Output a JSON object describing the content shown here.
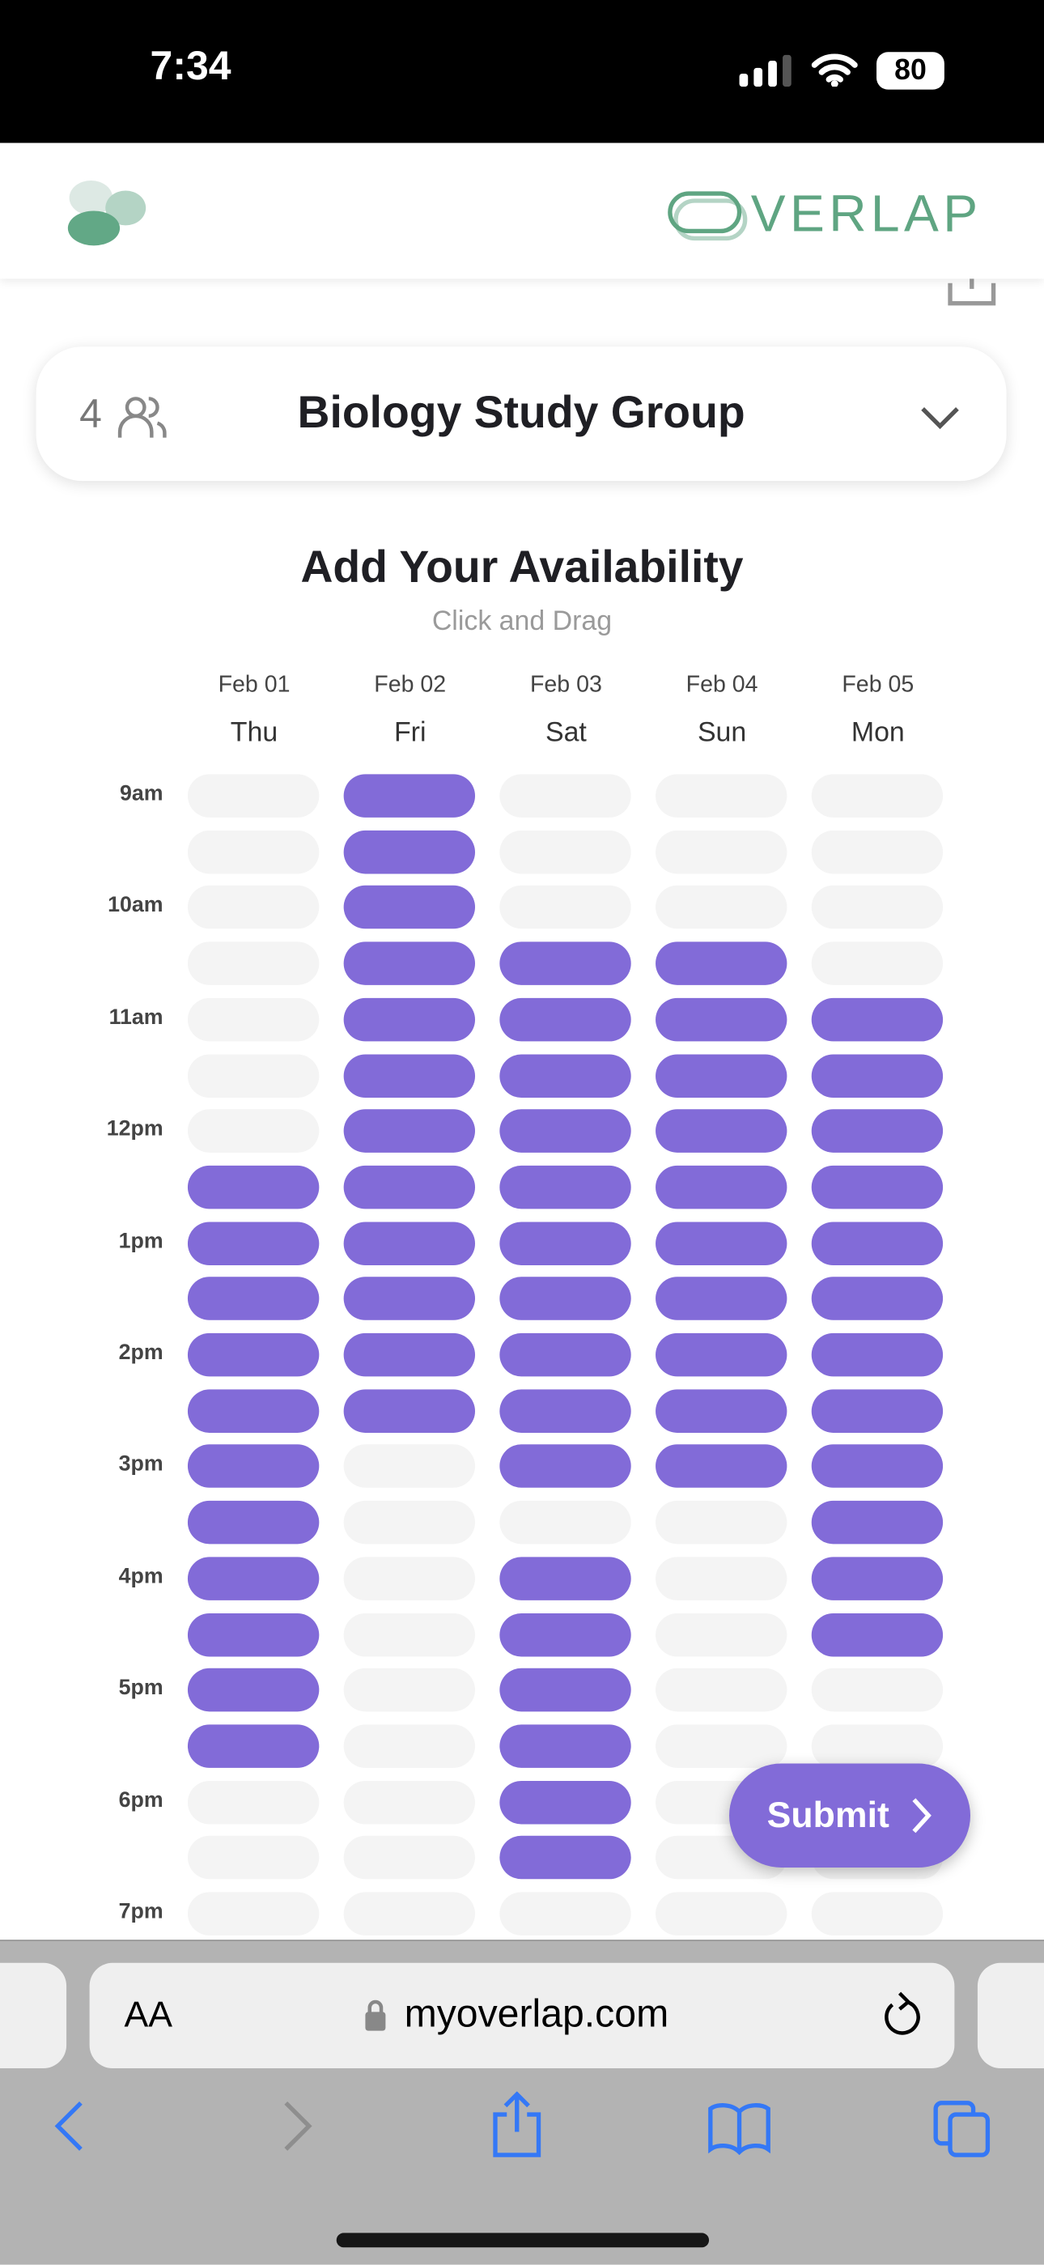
{
  "status_bar": {
    "time": "7:34",
    "battery": "80"
  },
  "app": {
    "brand": "VERLAP",
    "brand_full": "OVERLAP",
    "brand_color": "#5fa582"
  },
  "group": {
    "member_count": "4",
    "name": "Biology Study Group"
  },
  "page": {
    "title": "Add Your Availability",
    "subtitle": "Click and Drag"
  },
  "days": [
    {
      "date": "Feb 01",
      "day": "Thu"
    },
    {
      "date": "Feb 02",
      "day": "Fri"
    },
    {
      "date": "Feb 03",
      "day": "Sat"
    },
    {
      "date": "Feb 04",
      "day": "Sun"
    },
    {
      "date": "Feb 05",
      "day": "Mon"
    }
  ],
  "hours": [
    "9am",
    "10am",
    "11am",
    "12pm",
    "1pm",
    "2pm",
    "3pm",
    "4pm",
    "5pm",
    "6pm",
    "7pm"
  ],
  "availability": [
    [
      0,
      0,
      0,
      0,
      0,
      0,
      0,
      1,
      1,
      1,
      1,
      1,
      1,
      1,
      1,
      1,
      1,
      1,
      0,
      0,
      0
    ],
    [
      1,
      1,
      1,
      1,
      1,
      1,
      1,
      1,
      1,
      1,
      1,
      1,
      0,
      0,
      0,
      0,
      0,
      0,
      0,
      0,
      0
    ],
    [
      0,
      0,
      0,
      1,
      1,
      1,
      1,
      1,
      1,
      1,
      1,
      1,
      1,
      0,
      1,
      1,
      1,
      1,
      1,
      1,
      0
    ],
    [
      0,
      0,
      0,
      1,
      1,
      1,
      1,
      1,
      1,
      1,
      1,
      1,
      1,
      0,
      0,
      0,
      0,
      0,
      0,
      0,
      0
    ],
    [
      0,
      0,
      0,
      0,
      1,
      1,
      1,
      1,
      1,
      1,
      1,
      1,
      1,
      1,
      1,
      1,
      0,
      0,
      0,
      0,
      0
    ]
  ],
  "colors": {
    "selected": "#826bd8",
    "unselected": "#f4f4f4"
  },
  "submit_label": "Submit",
  "browser": {
    "text_size": "AA",
    "url": "myoverlap.com"
  }
}
